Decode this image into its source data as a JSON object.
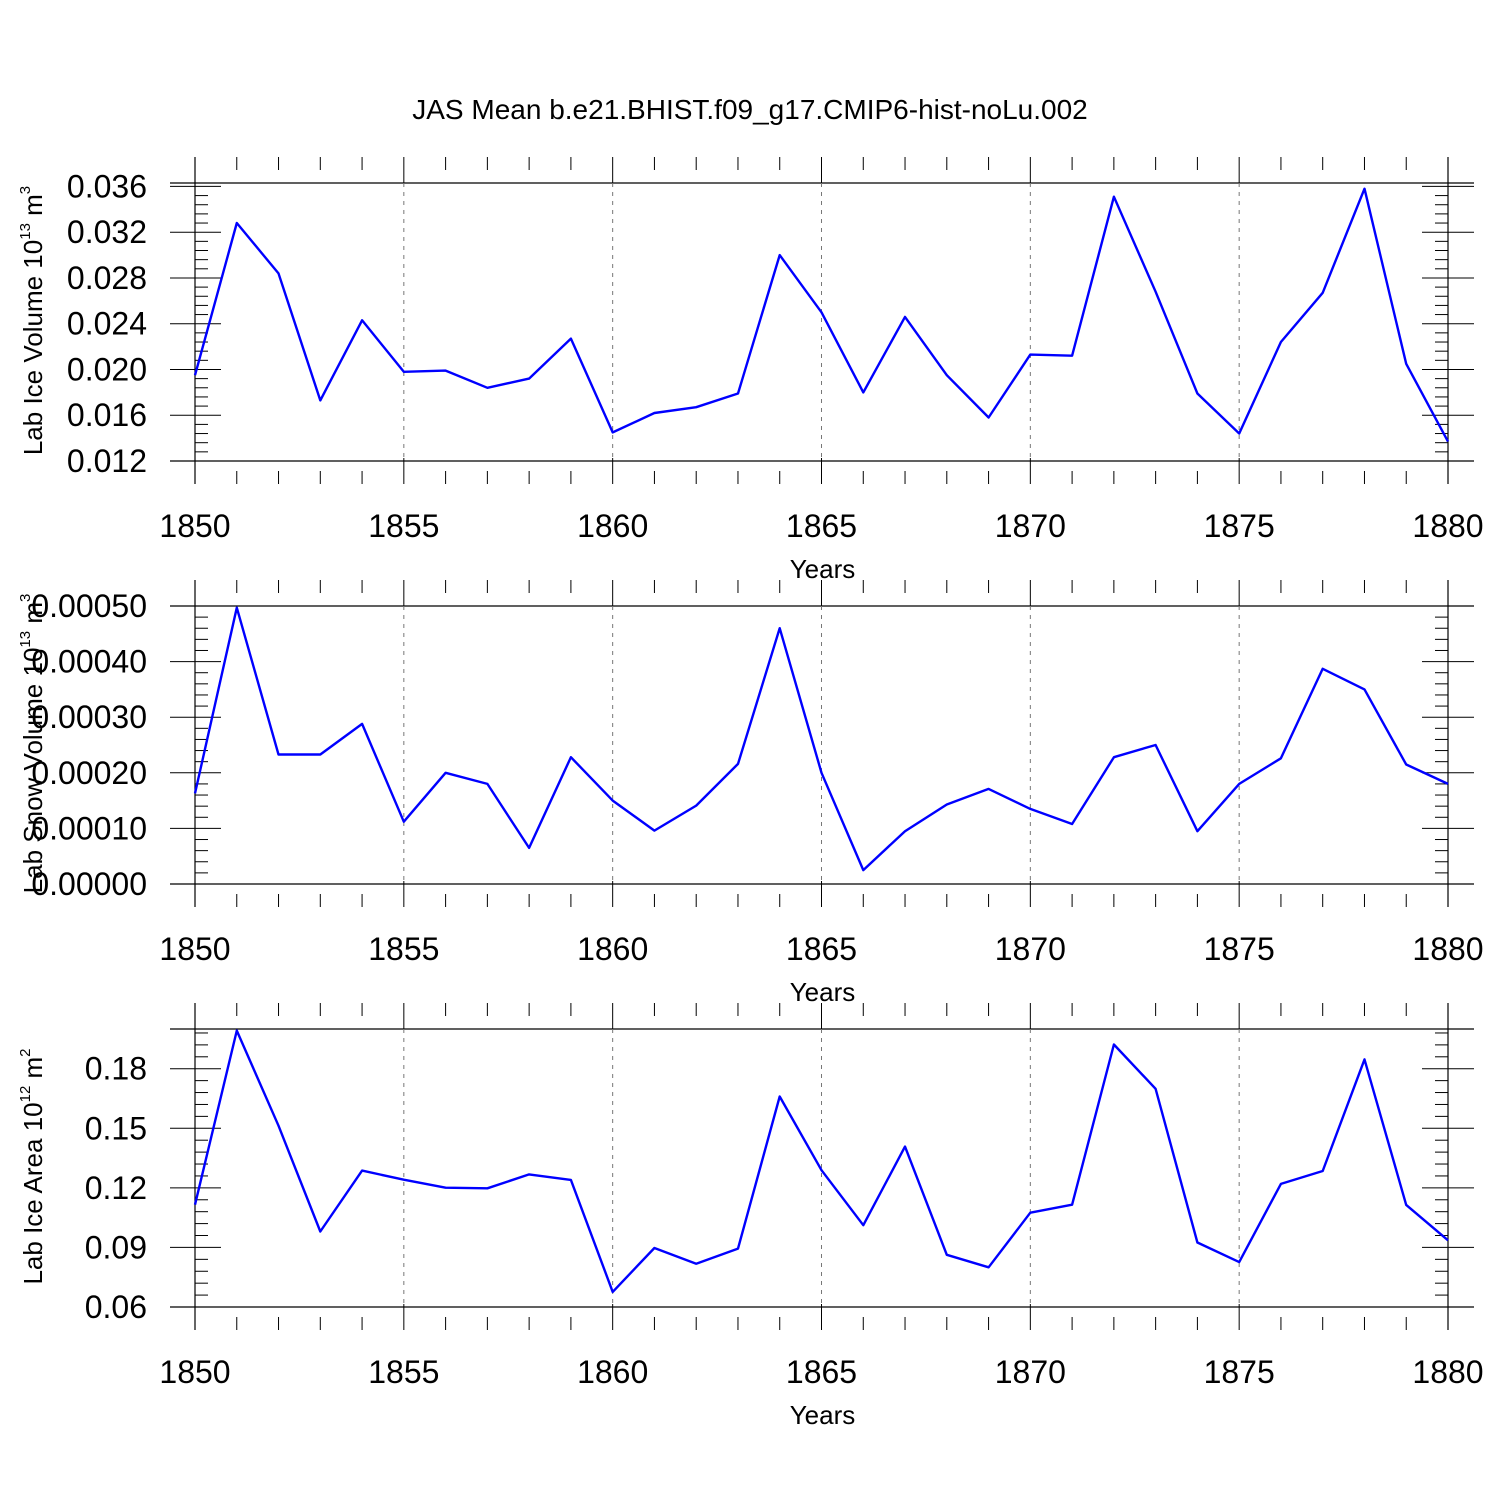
{
  "figure_title": "JAS Mean b.e21.BHIST.f09_g17.CMIP6-hist-noLu.002",
  "colors": {
    "line": "#0000ff",
    "axis": "#000000",
    "grid": "#777777"
  },
  "chart_data": [
    {
      "type": "line",
      "xlabel": "Years",
      "ylabel": {
        "base": "Lab Ice Volume 10",
        "exp1": "13",
        "mid": " m",
        "exp2": "3"
      },
      "xlim": [
        1850,
        1880
      ],
      "ylim": [
        0.012,
        0.0363
      ],
      "xticks": [
        1850,
        1855,
        1860,
        1865,
        1870,
        1875,
        1880
      ],
      "xtick_labels": [
        "1850",
        "1855",
        "1860",
        "1865",
        "1870",
        "1875",
        "1880"
      ],
      "yticks": [
        0.012,
        0.016,
        0.02,
        0.024,
        0.028,
        0.032,
        0.036
      ],
      "ytick_labels": [
        "0.012",
        "0.016",
        "0.020",
        "0.024",
        "0.028",
        "0.032",
        "0.036"
      ],
      "x": [
        1850,
        1851,
        1852,
        1853,
        1854,
        1855,
        1856,
        1857,
        1858,
        1859,
        1860,
        1861,
        1862,
        1863,
        1864,
        1865,
        1866,
        1867,
        1868,
        1869,
        1870,
        1871,
        1872,
        1873,
        1874,
        1875,
        1876,
        1877,
        1878,
        1879,
        1880
      ],
      "values": [
        0.0195,
        0.0328,
        0.0284,
        0.0173,
        0.0243,
        0.0198,
        0.0199,
        0.0184,
        0.0192,
        0.0227,
        0.0145,
        0.0162,
        0.0167,
        0.0179,
        0.03,
        0.025,
        0.018,
        0.0246,
        0.0195,
        0.0158,
        0.0213,
        0.0212,
        0.0351,
        0.0268,
        0.0179,
        0.0144,
        0.0224,
        0.0267,
        0.0358,
        0.0205,
        0.0137
      ]
    },
    {
      "type": "line",
      "xlabel": "Years",
      "ylabel": {
        "base": "Lab Snow Volume 10",
        "exp1": "13",
        "mid": " m",
        "exp2": "3"
      },
      "xlim": [
        1850,
        1880
      ],
      "ylim": [
        0.0,
        0.0005
      ],
      "xticks": [
        1850,
        1855,
        1860,
        1865,
        1870,
        1875,
        1880
      ],
      "xtick_labels": [
        "1850",
        "1855",
        "1860",
        "1865",
        "1870",
        "1875",
        "1880"
      ],
      "yticks": [
        0.0,
        0.0001,
        0.0002,
        0.0003,
        0.0004,
        0.0005
      ],
      "ytick_labels": [
        "0.00000",
        "0.00010",
        "0.00020",
        "0.00030",
        "0.00040",
        "0.00050"
      ],
      "x": [
        1850,
        1851,
        1852,
        1853,
        1854,
        1855,
        1856,
        1857,
        1858,
        1859,
        1860,
        1861,
        1862,
        1863,
        1864,
        1865,
        1866,
        1867,
        1868,
        1869,
        1870,
        1871,
        1872,
        1873,
        1874,
        1875,
        1876,
        1877,
        1878,
        1879,
        1880
      ],
      "values": [
        0.000163,
        0.000497,
        0.000233,
        0.000233,
        0.000288,
        0.000112,
        0.0002,
        0.00018,
        6.5e-05,
        0.000228,
        0.00015,
        9.6e-05,
        0.000141,
        0.000216,
        0.00046,
        0.0002,
        2.5e-05,
        9.5e-05,
        0.000143,
        0.000171,
        0.000135,
        0.000108,
        0.000228,
        0.00025,
        9.5e-05,
        0.00018,
        0.000226,
        0.000387,
        0.00035,
        0.000215,
        0.00018
      ]
    },
    {
      "type": "line",
      "xlabel": "Years",
      "ylabel": {
        "base": "Lab Ice Area 10",
        "exp1": "12",
        "mid": " m",
        "exp2": "2"
      },
      "xlim": [
        1850,
        1880
      ],
      "ylim": [
        0.06,
        0.2
      ],
      "xticks": [
        1850,
        1855,
        1860,
        1865,
        1870,
        1875,
        1880
      ],
      "xtick_labels": [
        "1850",
        "1855",
        "1860",
        "1865",
        "1870",
        "1875",
        "1880"
      ],
      "yticks": [
        0.06,
        0.09,
        0.12,
        0.15,
        0.18
      ],
      "ytick_labels": [
        "0.06",
        "0.09",
        "0.12",
        "0.15",
        "0.18"
      ],
      "x": [
        1850,
        1851,
        1852,
        1853,
        1854,
        1855,
        1856,
        1857,
        1858,
        1859,
        1860,
        1861,
        1862,
        1863,
        1864,
        1865,
        1866,
        1867,
        1868,
        1869,
        1870,
        1871,
        1872,
        1873,
        1874,
        1875,
        1876,
        1877,
        1878,
        1879,
        1880
      ],
      "values": [
        0.1115,
        0.1992,
        0.1513,
        0.098,
        0.1287,
        0.1241,
        0.1201,
        0.1198,
        0.1268,
        0.124,
        0.0676,
        0.0897,
        0.0818,
        0.0894,
        0.166,
        0.1289,
        0.1012,
        0.1408,
        0.0863,
        0.08,
        0.1075,
        0.1115,
        0.1922,
        0.1699,
        0.0925,
        0.0826,
        0.122,
        0.1285,
        0.1847,
        0.1114,
        0.0936
      ]
    }
  ]
}
